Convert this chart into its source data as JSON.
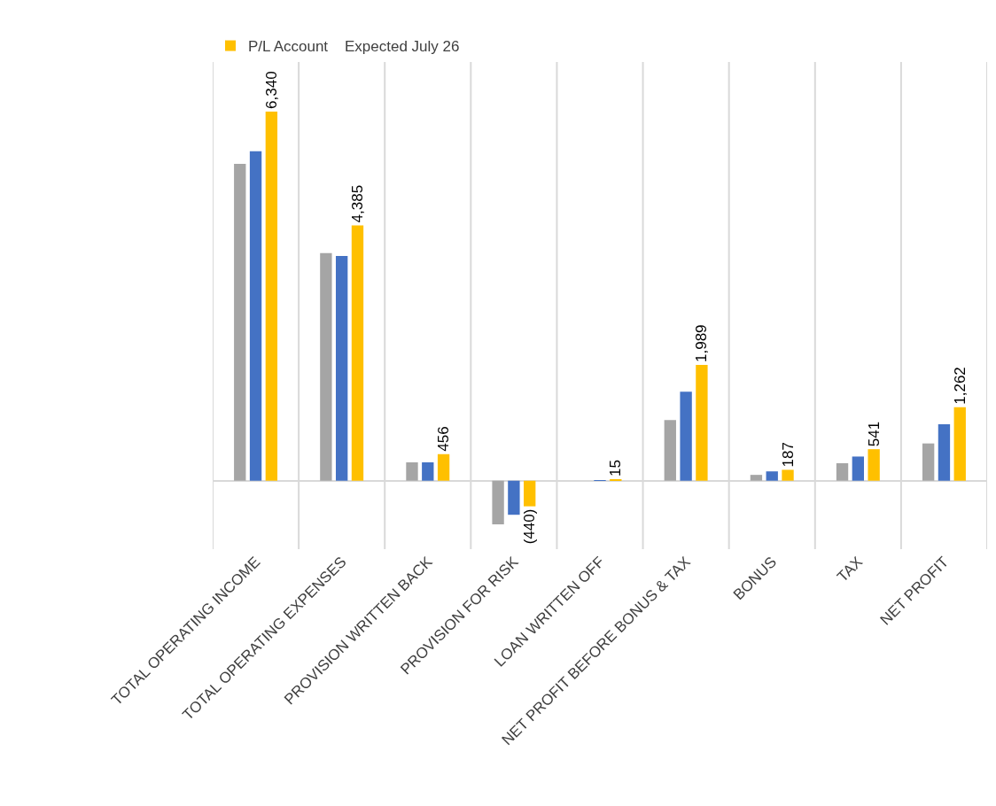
{
  "chart_data": {
    "type": "bar",
    "categories": [
      "TOTAL OPERATING INCOME",
      "TOTAL OPERATING EXPENSES",
      "PROVISION WRITTEN BACK",
      "PROVISION FOR RISK",
      "LOAN WRITTEN OFF",
      "NET PROFIT BEFORE BONUS & TAX",
      "BONUS",
      "TAX",
      "NET PROFIT"
    ],
    "series": [
      {
        "color": "#a5a5a5",
        "values": [
          5440,
          3910,
          315,
          -750,
          null,
          1040,
          100,
          300,
          640
        ]
      },
      {
        "color": "#4472c4",
        "values": [
          5660,
          3860,
          315,
          -585,
          2,
          1530,
          160,
          415,
          970
        ]
      },
      {
        "name": "P/L Account    Expected July 26",
        "color": "#ffc000",
        "values": [
          6340,
          4385,
          456,
          -440,
          15,
          1989,
          187,
          541,
          1262
        ],
        "value_labels": [
          "6,340",
          "4,385",
          "456",
          "(440)",
          "15",
          "1,989",
          "187",
          "541",
          "1,262"
        ]
      }
    ],
    "grid": "x",
    "legend": "top"
  }
}
